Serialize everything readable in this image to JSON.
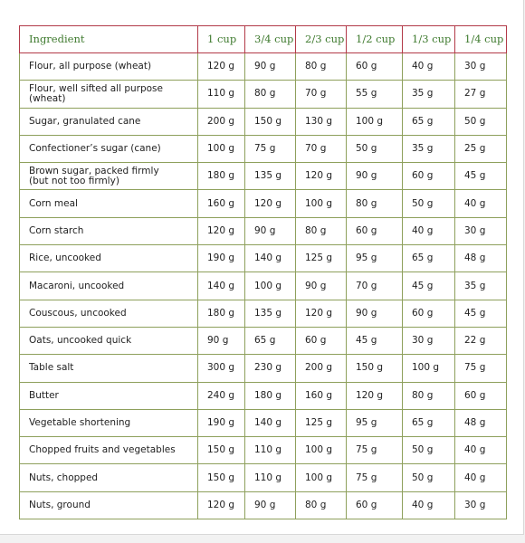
{
  "table": {
    "headers": [
      "Ingredient",
      "1 cup",
      "3/4 cup",
      "2/3 cup",
      "1/2 cup",
      "1/3 cup",
      "1/4 cup"
    ],
    "rows": [
      {
        "ingredient": "Flour, all purpose (wheat)",
        "values": [
          "120 g",
          "90 g",
          "80 g",
          "60 g",
          "40 g",
          "30 g"
        ]
      },
      {
        "ingredient": "Flour, well sifted all purpose (wheat)",
        "values": [
          "110 g",
          "80 g",
          "70 g",
          "55 g",
          "35 g",
          "27 g"
        ]
      },
      {
        "ingredient": "Sugar, granulated cane",
        "values": [
          "200 g",
          "150 g",
          "130 g",
          "100 g",
          "65 g",
          "50 g"
        ]
      },
      {
        "ingredient": "Confectioner’s sugar (cane)",
        "values": [
          "100 g",
          "75 g",
          "70 g",
          "50 g",
          "35 g",
          "25 g"
        ]
      },
      {
        "ingredient": "Brown sugar, packed firmly",
        "ingredient_line2": "(but not too firmly)",
        "values": [
          "180 g",
          "135 g",
          "120 g",
          "90 g",
          "60 g",
          "45 g"
        ]
      },
      {
        "ingredient": "Corn meal",
        "values": [
          "160 g",
          "120 g",
          "100 g",
          "80 g",
          "50 g",
          "40 g"
        ]
      },
      {
        "ingredient": "Corn starch",
        "values": [
          "120 g",
          "90 g",
          "80 g",
          "60 g",
          "40 g",
          "30 g"
        ]
      },
      {
        "ingredient": "Rice, uncooked",
        "values": [
          "190 g",
          "140 g",
          "125 g",
          "95 g",
          "65 g",
          "48 g"
        ]
      },
      {
        "ingredient": "Macaroni, uncooked",
        "values": [
          "140 g",
          "100 g",
          "90 g",
          "70 g",
          "45 g",
          "35 g"
        ]
      },
      {
        "ingredient": "Couscous, uncooked",
        "values": [
          "180 g",
          "135 g",
          "120 g",
          "90 g",
          "60 g",
          "45 g"
        ]
      },
      {
        "ingredient": "Oats, uncooked quick",
        "values": [
          "90 g",
          "65 g",
          "60 g",
          "45 g",
          "30 g",
          "22 g"
        ]
      },
      {
        "ingredient": "Table salt",
        "values": [
          "300 g",
          "230 g",
          "200 g",
          "150 g",
          "100 g",
          "75 g"
        ]
      },
      {
        "ingredient": "Butter",
        "values": [
          "240 g",
          "180 g",
          "160 g",
          "120 g",
          "80 g",
          "60 g"
        ]
      },
      {
        "ingredient": "Vegetable shortening",
        "values": [
          "190 g",
          "140 g",
          "125 g",
          "95 g",
          "65 g",
          "48 g"
        ]
      },
      {
        "ingredient": "Chopped fruits and vegetables",
        "values": [
          "150 g",
          "110 g",
          "100 g",
          "75 g",
          "50 g",
          "40 g"
        ]
      },
      {
        "ingredient": "Nuts, chopped",
        "values": [
          "150 g",
          "110 g",
          "100 g",
          "75 g",
          "50 g",
          "40 g"
        ]
      },
      {
        "ingredient": "Nuts, ground",
        "values": [
          "120 g",
          "90 g",
          "80 g",
          "60 g",
          "40 g",
          "30 g"
        ]
      }
    ]
  },
  "colors": {
    "header_border": "#b23a48",
    "header_text": "#3e7a2e",
    "grid_border": "#8ea05c"
  }
}
